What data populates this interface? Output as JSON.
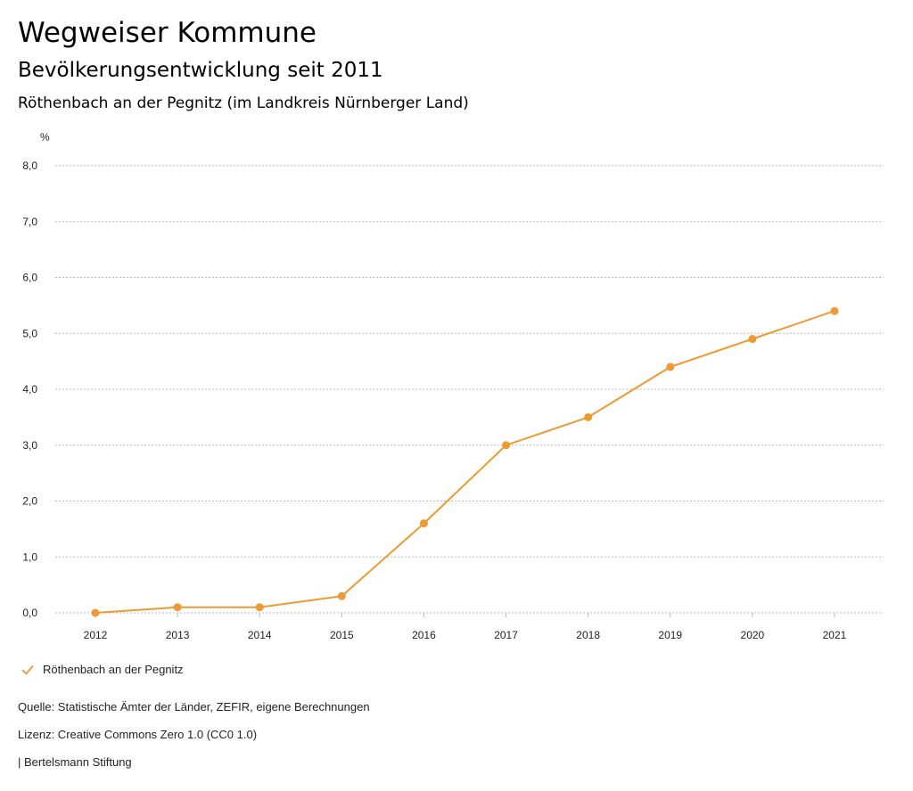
{
  "header": {
    "title": "Wegweiser Kommune",
    "subtitle": "Bevölkerungsentwicklung seit 2011",
    "region": "Röthenbach an der Pegnitz (im Landkreis Nürnberger Land)"
  },
  "chart_data": {
    "type": "line",
    "ylabel": "%",
    "ylim": [
      0,
      8
    ],
    "yticks": [
      "0,0",
      "1,0",
      "2,0",
      "3,0",
      "4,0",
      "5,0",
      "6,0",
      "7,0",
      "8,0"
    ],
    "x": [
      "2012",
      "2013",
      "2014",
      "2015",
      "2016",
      "2017",
      "2018",
      "2019",
      "2020",
      "2021"
    ],
    "series": [
      {
        "name": "Röthenbach an der Pegnitz",
        "color": "#ee9a33",
        "values": [
          0.0,
          0.1,
          0.1,
          0.3,
          1.6,
          3.0,
          3.5,
          4.4,
          4.9,
          5.4
        ]
      }
    ],
    "grid": true,
    "legend": "bottom-left"
  },
  "legend": {
    "label": "Röthenbach an der Pegnitz",
    "icon": "check-icon"
  },
  "footer": {
    "source": "Quelle: Statistische Ämter der Länder, ZEFIR, eigene Berechnungen",
    "license": "Lizenz: Creative Commons Zero 1.0 (CC0 1.0)",
    "brand": "| Bertelsmann Stiftung"
  }
}
